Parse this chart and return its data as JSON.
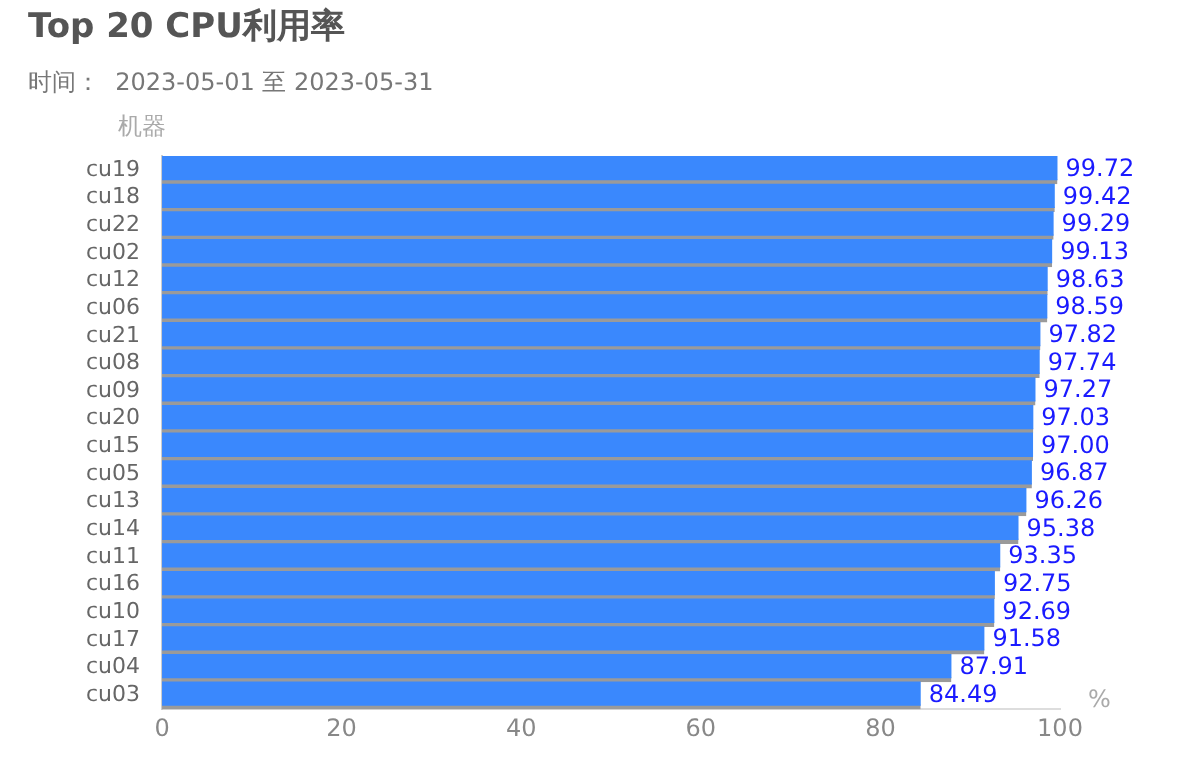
{
  "chart_data": {
    "type": "bar",
    "orientation": "horizontal",
    "title": "Top 20 CPU利用率",
    "subtitle": "时间：  2023-05-01 至 2023-05-31",
    "ylabel": "机器",
    "xlabel": "%",
    "categories": [
      "cu19",
      "cu18",
      "cu22",
      "cu02",
      "cu12",
      "cu06",
      "cu21",
      "cu08",
      "cu09",
      "cu20",
      "cu15",
      "cu05",
      "cu13",
      "cu14",
      "cu11",
      "cu16",
      "cu10",
      "cu17",
      "cu04",
      "cu03"
    ],
    "values": [
      99.72,
      99.42,
      99.29,
      99.13,
      98.63,
      98.59,
      97.82,
      97.74,
      97.27,
      97.03,
      97.0,
      96.87,
      96.26,
      95.38,
      93.35,
      92.75,
      92.69,
      91.58,
      87.91,
      84.49
    ],
    "value_labels": [
      "99.72",
      "99.42",
      "99.29",
      "99.13",
      "98.63",
      "98.59",
      "97.82",
      "97.74",
      "97.27",
      "97.03",
      "97.00",
      "96.87",
      "96.26",
      "95.38",
      "93.35",
      "92.75",
      "92.69",
      "91.58",
      "87.91",
      "84.49"
    ],
    "color": "#3a88fd",
    "xlim": [
      0,
      100
    ],
    "xticks": [
      0,
      20,
      40,
      60,
      80,
      100
    ],
    "legend": false
  }
}
